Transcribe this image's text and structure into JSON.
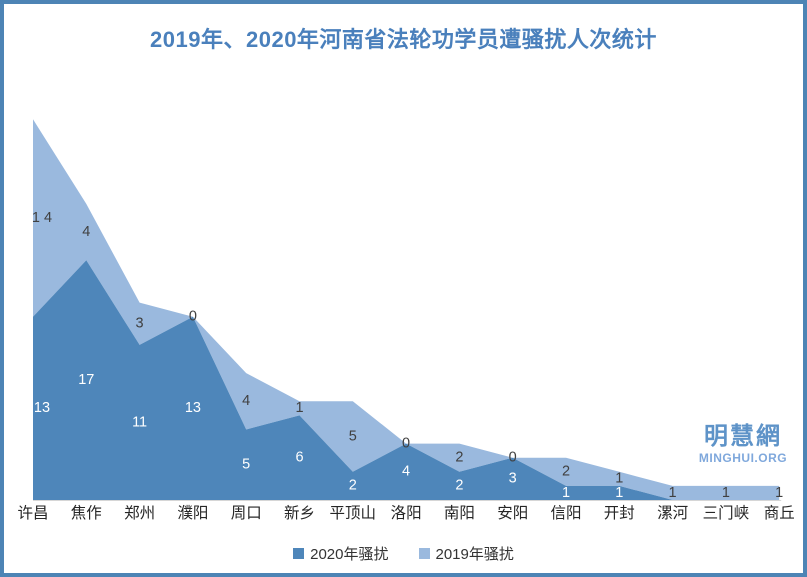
{
  "page": {
    "border_color": "#4d84b5",
    "background_color": "#ffffff"
  },
  "header": {
    "title": "2019年、2020年河南省法轮功学员遭骚扰人次统计",
    "title_color": "#4a80bc"
  },
  "watermark": {
    "logo_text": "明慧網",
    "logo_subtext": "MINGHUI.ORG",
    "logo_text_color": "#5e93c8",
    "logo_subtext_color": "#7fa8dc"
  },
  "legend": {
    "items": [
      {
        "label": "2020年骚扰",
        "color": "#4e86ba"
      },
      {
        "label": "2019年骚扰",
        "color": "#9ab9de"
      }
    ]
  },
  "chart_data": {
    "type": "area",
    "stacked": true,
    "title": "2019年、2020年河南省法轮功学员遭骚扰人次统计",
    "xlabel": "",
    "ylabel": "",
    "ylim": [
      0,
      29
    ],
    "grid": false,
    "legend_position": "bottom",
    "axis_text_color": "#262626",
    "axis_line_color": "#d6d6d6",
    "categories": [
      "许昌",
      "焦作",
      "郑州",
      "濮阳",
      "周口",
      "新乡",
      "平顶山",
      "洛阳",
      "南阳",
      "安阳",
      "信阳",
      "开封",
      "漯河",
      "三门峡",
      "商丘"
    ],
    "series": [
      {
        "name": "2020年骚扰",
        "color": "#4e86ba",
        "label_color": "#ffffff",
        "values": [
          13,
          17,
          11,
          13,
          5,
          6,
          2,
          4,
          2,
          3,
          1,
          1,
          0,
          0,
          0
        ],
        "labels": [
          "13",
          "17",
          "11",
          "13",
          "5",
          "6",
          "2",
          "4",
          "2",
          "3",
          "1",
          "1",
          "",
          "",
          ""
        ]
      },
      {
        "name": "2019年骚扰",
        "color": "#9ab9de",
        "label_color": "#404040",
        "values": [
          14,
          4,
          3,
          0,
          4,
          1,
          5,
          0,
          2,
          0,
          2,
          1,
          1,
          1,
          1
        ],
        "labels": [
          "1 4",
          "4",
          "3",
          "0",
          "4",
          "1",
          "5",
          "0",
          "2",
          "0",
          "2",
          "1",
          "1",
          "1",
          "1"
        ]
      }
    ]
  }
}
